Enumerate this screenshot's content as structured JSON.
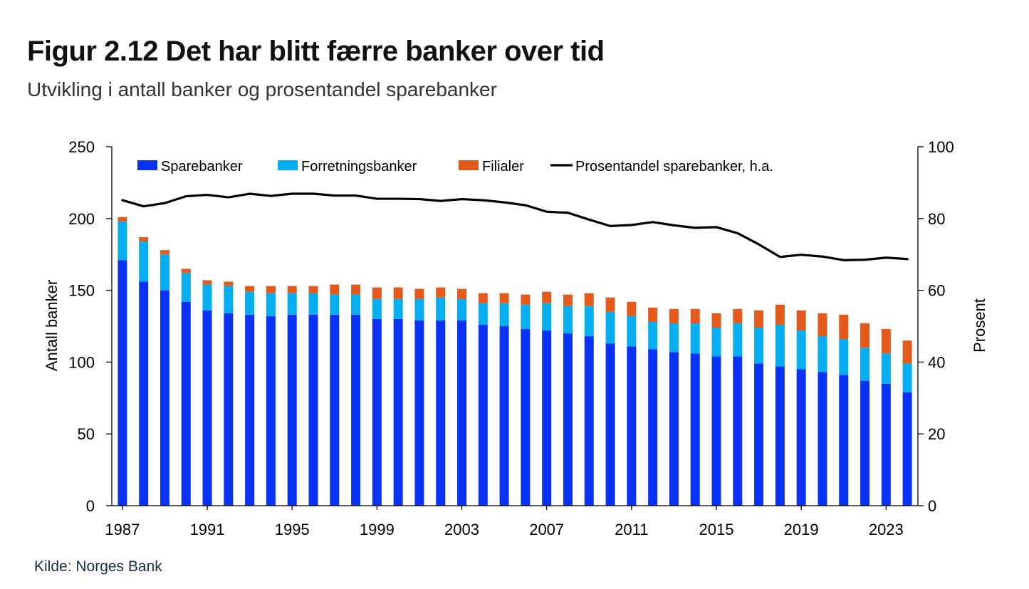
{
  "title": "Figur 2.12 Det har blitt færre banker over tid",
  "subtitle": "Utvikling i antall banker og prosentandel sparebanker",
  "source": "Kilde: Norges Bank",
  "colors": {
    "sparebanker": "#0a32f5",
    "forretningsbanker": "#04aef0",
    "filialer": "#e45a1c",
    "line": "#000000",
    "axis": "#000000"
  },
  "chart_data": {
    "type": "bar",
    "stacked": true,
    "categories": [
      "1987",
      "1988",
      "1989",
      "1990",
      "1991",
      "1992",
      "1993",
      "1994",
      "1995",
      "1996",
      "1997",
      "1998",
      "1999",
      "2000",
      "2001",
      "2002",
      "2003",
      "2004",
      "2005",
      "2006",
      "2007",
      "2008",
      "2009",
      "2010",
      "2011",
      "2012",
      "2013",
      "2014",
      "2015",
      "2016",
      "2017",
      "2018",
      "2019",
      "2020",
      "2021",
      "2022",
      "2023",
      "2024"
    ],
    "x_tick_labels": [
      "1987",
      "1991",
      "1995",
      "1999",
      "2003",
      "2007",
      "2011",
      "2015",
      "2019",
      "2023"
    ],
    "ylabel": "Antall banker",
    "y2label": "Prosent",
    "ylim": [
      0,
      250
    ],
    "y2lim": [
      0,
      100
    ],
    "yticks": [
      0,
      50,
      100,
      150,
      200,
      250
    ],
    "y2ticks": [
      0,
      20,
      40,
      60,
      80,
      100
    ],
    "legend_position": "top",
    "series": [
      {
        "name": "Sparebanker",
        "type": "bar",
        "axis": "left",
        "values": [
          171,
          156,
          150,
          142,
          136,
          134,
          133,
          132,
          133,
          133,
          133,
          133,
          130,
          130,
          129,
          129,
          129,
          126,
          125,
          123,
          122,
          120,
          118,
          113,
          111,
          109,
          107,
          106,
          104,
          104,
          99,
          97,
          95,
          93,
          91,
          87,
          85,
          79
        ]
      },
      {
        "name": "Forretningsbanker",
        "type": "bar",
        "axis": "left",
        "values": [
          27,
          28,
          25,
          20,
          18,
          19,
          16,
          16,
          15,
          15,
          14,
          14,
          14,
          14,
          15,
          16,
          15,
          15,
          16,
          17,
          19,
          19,
          21,
          22,
          21,
          19,
          20,
          21,
          20,
          23,
          25,
          29,
          27,
          25,
          25,
          23,
          21,
          20
        ]
      },
      {
        "name": "Filialer",
        "type": "bar",
        "axis": "left",
        "values": [
          3,
          3,
          3,
          3,
          3,
          3,
          4,
          5,
          5,
          5,
          7,
          7,
          8,
          8,
          7,
          7,
          7,
          7,
          7,
          7,
          8,
          8,
          9,
          10,
          10,
          10,
          10,
          10,
          10,
          10,
          12,
          14,
          14,
          16,
          17,
          17,
          17,
          16
        ]
      },
      {
        "name": "Prosentandel sparebanker, h.a.",
        "type": "line",
        "axis": "right",
        "values": [
          85.1,
          83.4,
          84.3,
          86.2,
          86.6,
          85.9,
          86.9,
          86.3,
          86.9,
          86.9,
          86.4,
          86.4,
          85.5,
          85.5,
          85.4,
          84.9,
          85.4,
          85.1,
          84.5,
          83.7,
          81.9,
          81.6,
          79.7,
          77.9,
          78.2,
          79.0,
          78.1,
          77.4,
          77.6,
          75.9,
          72.8,
          69.3,
          69.9,
          69.4,
          68.4,
          68.5,
          69.1,
          68.7
        ]
      }
    ]
  }
}
